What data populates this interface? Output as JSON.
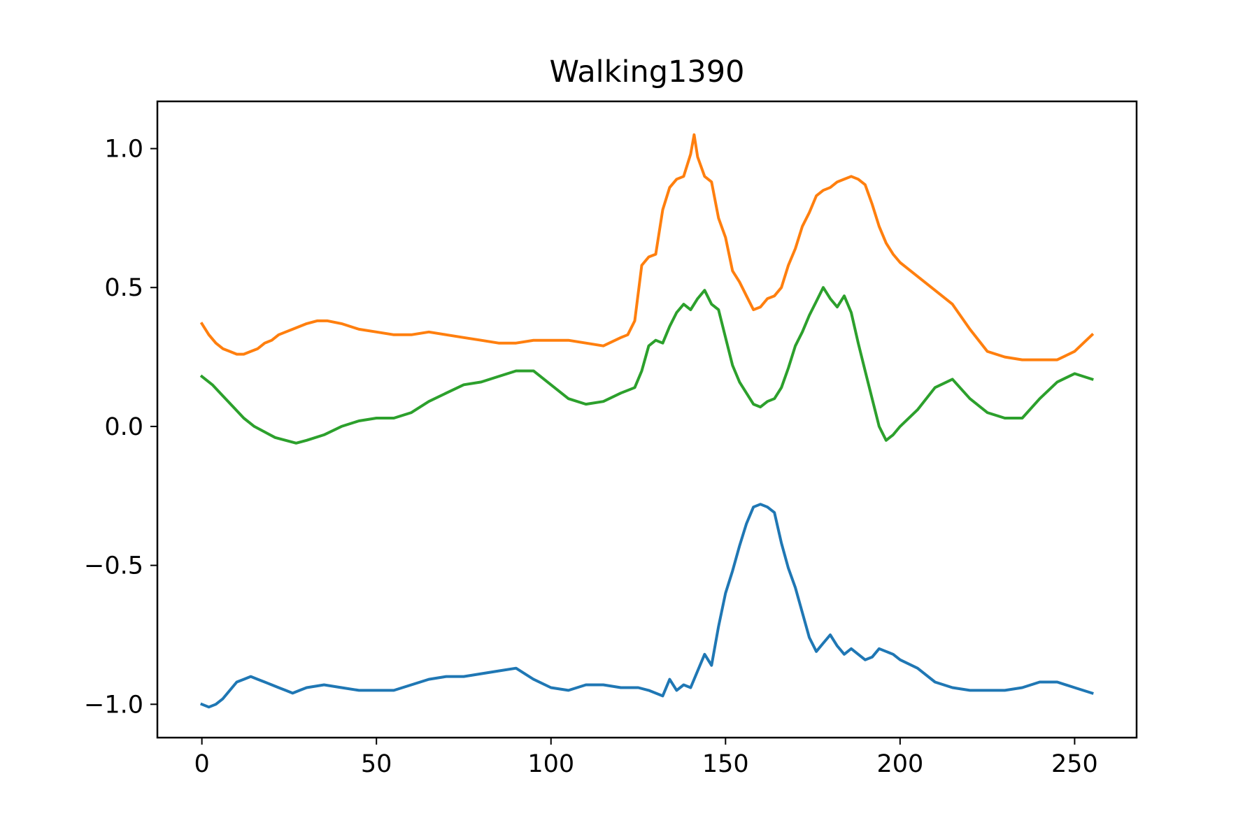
{
  "chart_data": {
    "type": "line",
    "title": "Walking1390",
    "xlabel": "",
    "ylabel": "",
    "xlim": [
      -12.75,
      267.75
    ],
    "ylim": [
      -1.12,
      1.17
    ],
    "x_ticks": [
      0,
      50,
      100,
      150,
      200,
      250
    ],
    "y_ticks": [
      -1.0,
      -0.5,
      0.0,
      0.5,
      1.0
    ],
    "x_tick_labels": [
      "0",
      "50",
      "100",
      "150",
      "200",
      "250"
    ],
    "y_tick_labels": [
      "−1.0",
      "−0.5",
      "0.0",
      "0.5",
      "1.0"
    ],
    "grid": false,
    "legend": "none",
    "series": [
      {
        "color": "#1f77b4",
        "x": [
          0,
          2,
          4,
          6,
          8,
          10,
          12,
          14,
          16,
          18,
          20,
          22,
          24,
          26,
          28,
          30,
          35,
          40,
          45,
          50,
          55,
          60,
          65,
          70,
          75,
          80,
          85,
          90,
          95,
          100,
          105,
          110,
          115,
          120,
          125,
          128,
          130,
          132,
          134,
          136,
          138,
          140,
          142,
          144,
          146,
          148,
          150,
          152,
          154,
          156,
          158,
          160,
          162,
          164,
          166,
          168,
          170,
          172,
          174,
          176,
          178,
          180,
          182,
          184,
          186,
          188,
          190,
          192,
          194,
          196,
          198,
          200,
          205,
          210,
          215,
          220,
          225,
          230,
          235,
          240,
          245,
          250,
          255
        ],
        "y": [
          -1.0,
          -1.01,
          -1.0,
          -0.98,
          -0.95,
          -0.92,
          -0.91,
          -0.9,
          -0.91,
          -0.92,
          -0.93,
          -0.94,
          -0.95,
          -0.96,
          -0.95,
          -0.94,
          -0.93,
          -0.94,
          -0.95,
          -0.95,
          -0.95,
          -0.93,
          -0.91,
          -0.9,
          -0.9,
          -0.89,
          -0.88,
          -0.87,
          -0.91,
          -0.94,
          -0.95,
          -0.93,
          -0.93,
          -0.94,
          -0.94,
          -0.95,
          -0.96,
          -0.97,
          -0.91,
          -0.95,
          -0.93,
          -0.94,
          -0.88,
          -0.82,
          -0.86,
          -0.72,
          -0.6,
          -0.52,
          -0.43,
          -0.35,
          -0.29,
          -0.28,
          -0.29,
          -0.31,
          -0.42,
          -0.51,
          -0.58,
          -0.67,
          -0.76,
          -0.81,
          -0.78,
          -0.75,
          -0.79,
          -0.82,
          -0.8,
          -0.82,
          -0.84,
          -0.83,
          -0.8,
          -0.81,
          -0.82,
          -0.84,
          -0.87,
          -0.92,
          -0.94,
          -0.95,
          -0.95,
          -0.95,
          -0.94,
          -0.92,
          -0.92,
          -0.94,
          -0.96
        ]
      },
      {
        "color": "#ff7f0e",
        "x": [
          0,
          2,
          4,
          6,
          8,
          10,
          12,
          14,
          16,
          18,
          20,
          22,
          24,
          26,
          28,
          30,
          33,
          36,
          40,
          45,
          50,
          55,
          60,
          65,
          70,
          75,
          80,
          85,
          90,
          95,
          100,
          105,
          110,
          115,
          120,
          122,
          124,
          126,
          128,
          130,
          132,
          134,
          136,
          138,
          140,
          141,
          142,
          144,
          146,
          148,
          150,
          152,
          154,
          156,
          158,
          160,
          162,
          164,
          166,
          168,
          170,
          172,
          174,
          176,
          178,
          180,
          182,
          184,
          186,
          188,
          190,
          192,
          194,
          196,
          198,
          200,
          205,
          210,
          215,
          220,
          225,
          230,
          235,
          240,
          245,
          250,
          255
        ],
        "y": [
          0.37,
          0.33,
          0.3,
          0.28,
          0.27,
          0.26,
          0.26,
          0.27,
          0.28,
          0.3,
          0.31,
          0.33,
          0.34,
          0.35,
          0.36,
          0.37,
          0.38,
          0.38,
          0.37,
          0.35,
          0.34,
          0.33,
          0.33,
          0.34,
          0.33,
          0.32,
          0.31,
          0.3,
          0.3,
          0.31,
          0.31,
          0.31,
          0.3,
          0.29,
          0.32,
          0.33,
          0.38,
          0.58,
          0.61,
          0.62,
          0.78,
          0.86,
          0.89,
          0.9,
          0.98,
          1.05,
          0.97,
          0.9,
          0.88,
          0.75,
          0.68,
          0.56,
          0.52,
          0.47,
          0.42,
          0.43,
          0.46,
          0.47,
          0.5,
          0.58,
          0.64,
          0.72,
          0.77,
          0.83,
          0.85,
          0.86,
          0.88,
          0.89,
          0.9,
          0.89,
          0.87,
          0.8,
          0.72,
          0.66,
          0.62,
          0.59,
          0.54,
          0.49,
          0.44,
          0.35,
          0.27,
          0.25,
          0.24,
          0.24,
          0.24,
          0.27,
          0.33
        ]
      },
      {
        "color": "#2ca02c",
        "x": [
          0,
          3,
          6,
          9,
          12,
          15,
          18,
          21,
          24,
          27,
          30,
          35,
          40,
          45,
          50,
          55,
          60,
          65,
          70,
          75,
          80,
          85,
          90,
          95,
          100,
          105,
          110,
          115,
          120,
          122,
          124,
          126,
          128,
          130,
          132,
          134,
          136,
          138,
          140,
          142,
          144,
          146,
          148,
          150,
          152,
          154,
          156,
          158,
          160,
          162,
          164,
          166,
          168,
          170,
          172,
          174,
          176,
          178,
          180,
          182,
          184,
          186,
          188,
          190,
          192,
          194,
          196,
          198,
          200,
          205,
          210,
          215,
          220,
          225,
          230,
          235,
          240,
          245,
          250,
          255
        ],
        "y": [
          0.18,
          0.15,
          0.11,
          0.07,
          0.03,
          0.0,
          -0.02,
          -0.04,
          -0.05,
          -0.06,
          -0.05,
          -0.03,
          0.0,
          0.02,
          0.03,
          0.03,
          0.05,
          0.09,
          0.12,
          0.15,
          0.16,
          0.18,
          0.2,
          0.2,
          0.15,
          0.1,
          0.08,
          0.09,
          0.12,
          0.13,
          0.14,
          0.2,
          0.29,
          0.31,
          0.3,
          0.36,
          0.41,
          0.44,
          0.42,
          0.46,
          0.49,
          0.44,
          0.42,
          0.32,
          0.22,
          0.16,
          0.12,
          0.08,
          0.07,
          0.09,
          0.1,
          0.14,
          0.21,
          0.29,
          0.34,
          0.4,
          0.45,
          0.5,
          0.46,
          0.43,
          0.47,
          0.41,
          0.3,
          0.2,
          0.1,
          0.0,
          -0.05,
          -0.03,
          0.0,
          0.06,
          0.14,
          0.17,
          0.1,
          0.05,
          0.03,
          0.03,
          0.1,
          0.16,
          0.19,
          0.17
        ]
      }
    ]
  }
}
